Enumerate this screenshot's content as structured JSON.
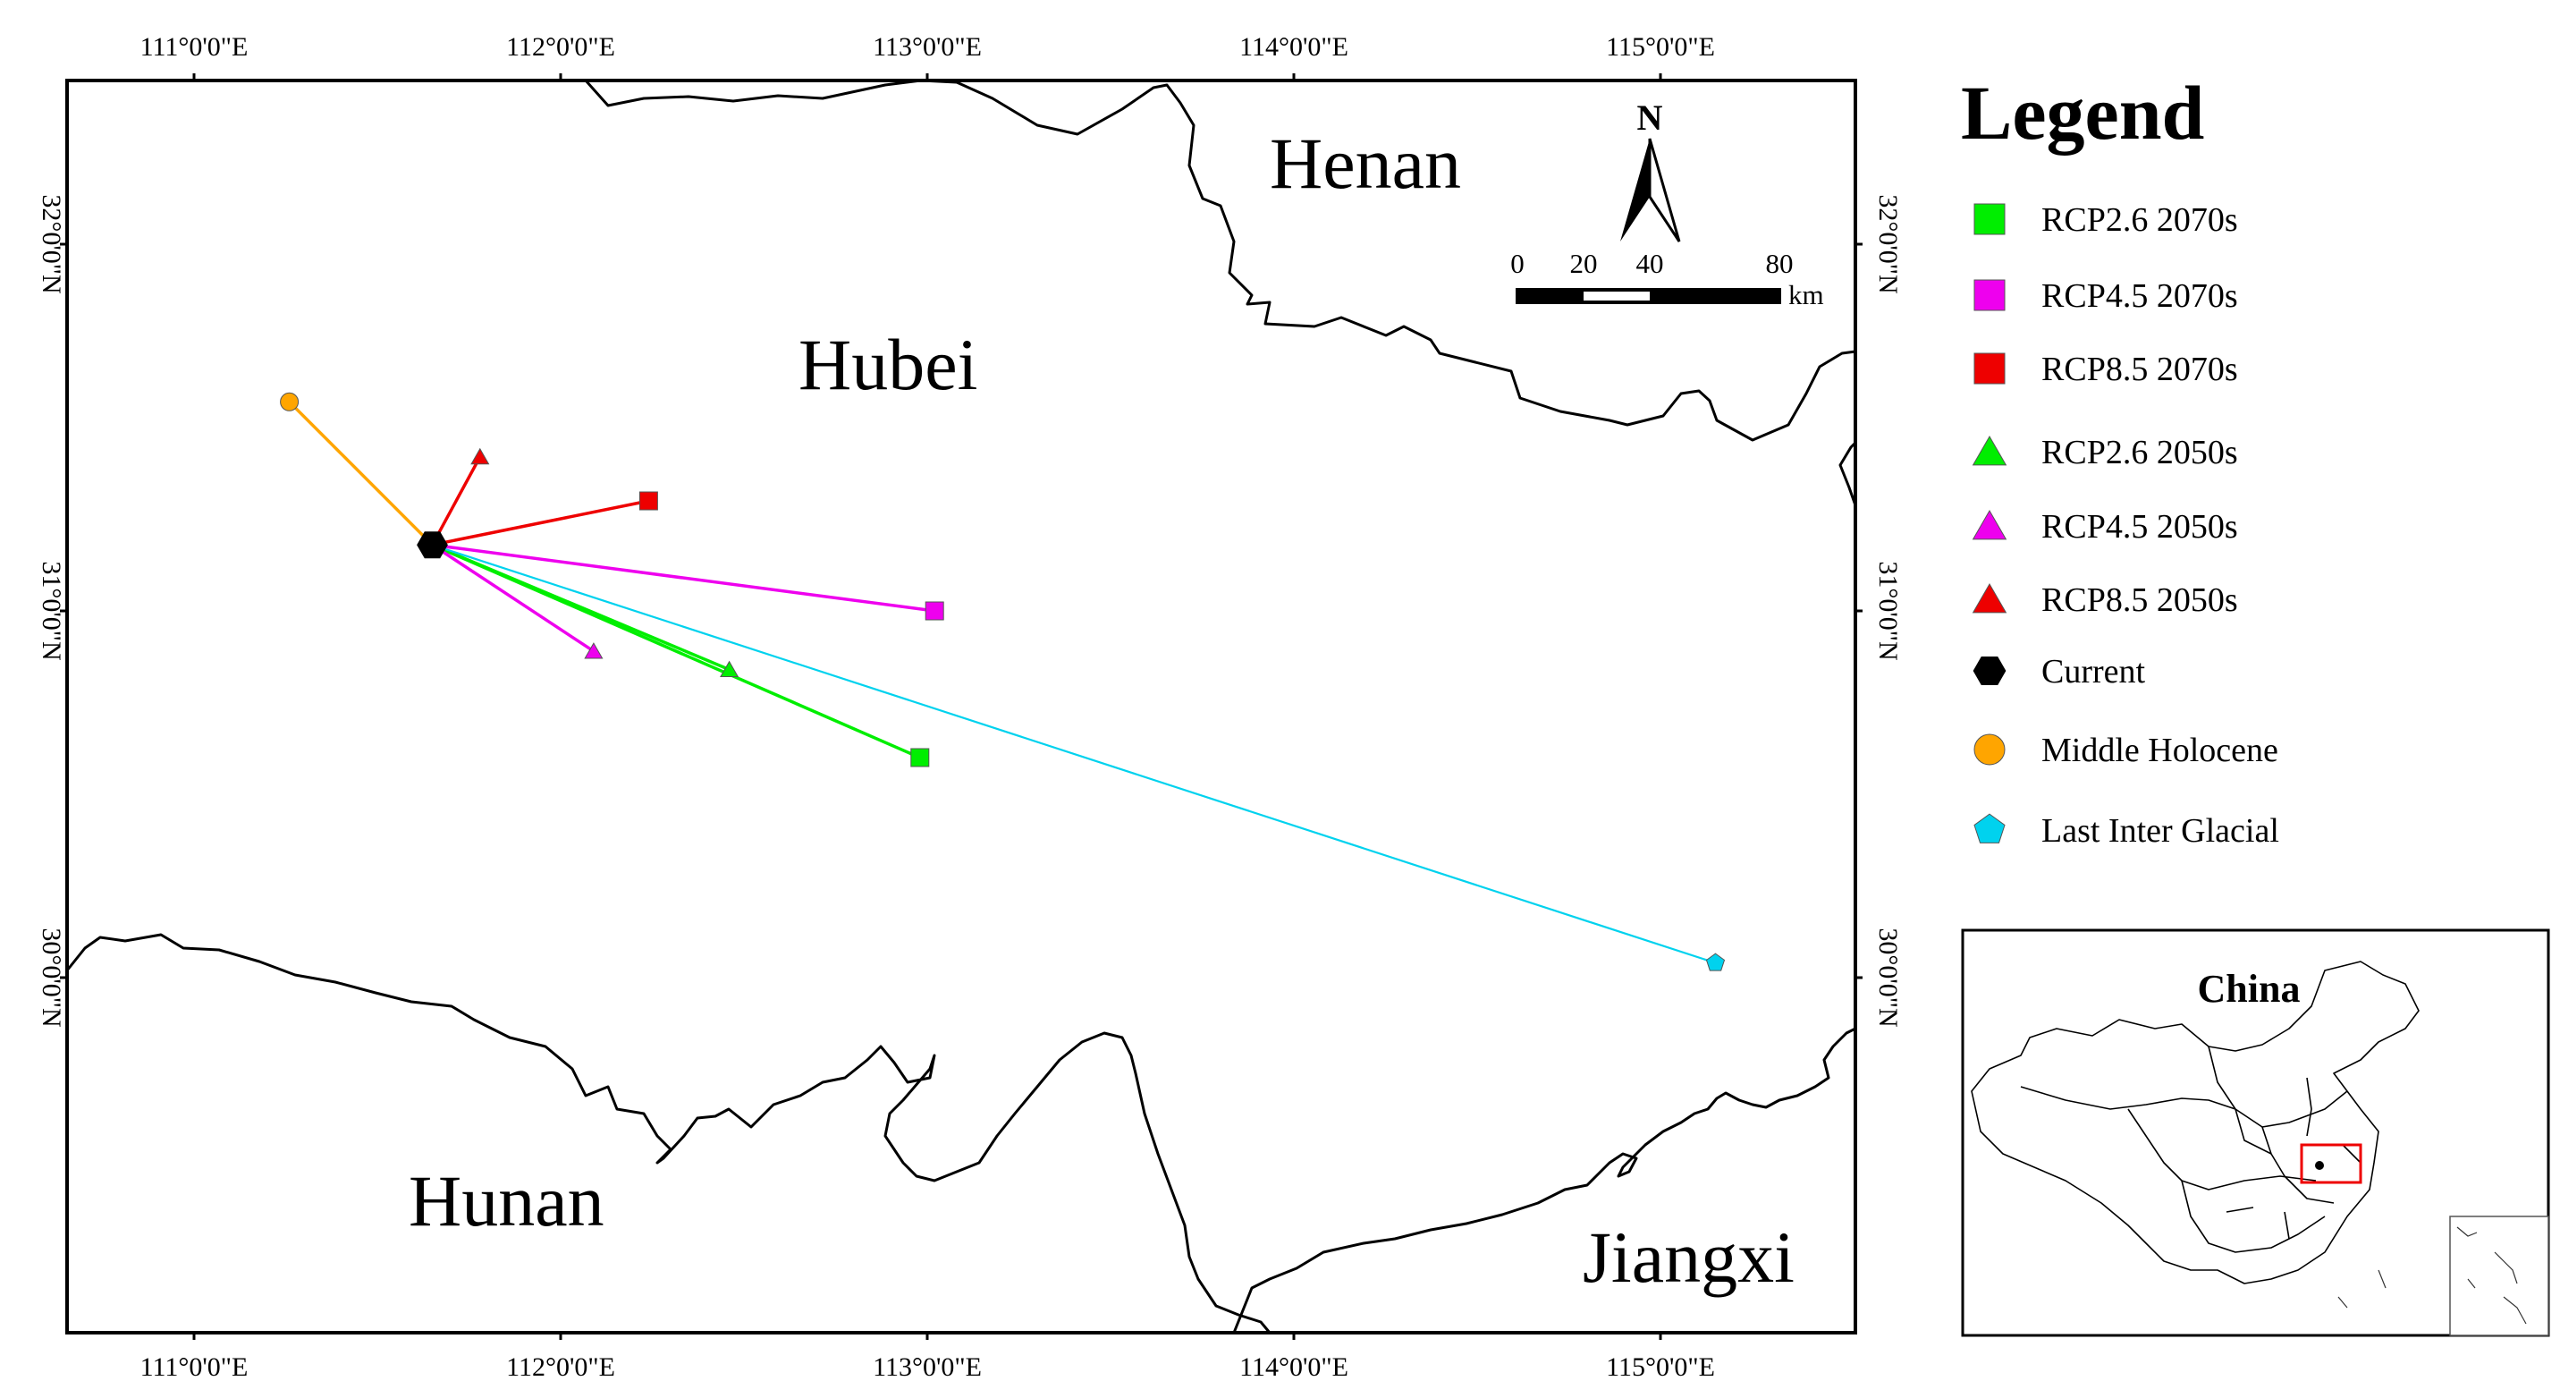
{
  "map": {
    "provinces": {
      "henan": "Henan",
      "hubei": "Hubei",
      "hunan": "Hunan",
      "jiangxi": "Jiangxi"
    },
    "lon_ticks": [
      "111°0'0\"E",
      "112°0'0\"E",
      "113°0'0\"E",
      "114°0'0\"E",
      "115°0'0\"E"
    ],
    "lat_ticks": [
      "32°0'0\"N",
      "31°0'0\"N",
      "30°0'0\"N"
    ],
    "north_label": "N",
    "scale": {
      "labels": [
        "0",
        "20",
        "40",
        "80"
      ],
      "unit": "km"
    },
    "centroids": [
      {
        "id": "current",
        "lon": 111.65,
        "lat": 31.18,
        "shape": "hexagon",
        "color": "#000000"
      },
      {
        "id": "rcp26_2070s",
        "lon": 112.98,
        "lat": 30.6,
        "shape": "square",
        "color": "#00ee00"
      },
      {
        "id": "rcp45_2070s",
        "lon": 113.02,
        "lat": 31.0,
        "shape": "square",
        "color": "#ee00ee"
      },
      {
        "id": "rcp85_2070s",
        "lon": 112.24,
        "lat": 31.3,
        "shape": "square",
        "color": "#ee0000"
      },
      {
        "id": "rcp26_2050s",
        "lon": 112.46,
        "lat": 30.84,
        "shape": "triangle",
        "color": "#00ee00"
      },
      {
        "id": "rcp45_2050s",
        "lon": 112.09,
        "lat": 30.89,
        "shape": "triangle",
        "color": "#ee00ee"
      },
      {
        "id": "rcp85_2050s",
        "lon": 111.78,
        "lat": 31.42,
        "shape": "triangle",
        "color": "#ee0000"
      },
      {
        "id": "middle_holocene",
        "lon": 111.26,
        "lat": 31.57,
        "shape": "circle",
        "color": "#ffa500"
      },
      {
        "id": "last_inter_glacial",
        "lon": 115.15,
        "lat": 30.04,
        "shape": "pentagon",
        "color": "#00d2ee"
      }
    ]
  },
  "legend": {
    "title": "Legend",
    "items": [
      {
        "label": "RCP2.6 2070s",
        "shape": "square",
        "color": "#00ee00"
      },
      {
        "label": "RCP4.5 2070s",
        "shape": "square",
        "color": "#ee00ee"
      },
      {
        "label": "RCP8.5 2070s",
        "shape": "square",
        "color": "#ee0000"
      },
      {
        "label": "RCP2.6 2050s",
        "shape": "triangle",
        "color": "#00ee00"
      },
      {
        "label": "RCP4.5 2050s",
        "shape": "triangle",
        "color": "#ee00ee"
      },
      {
        "label": "RCP8.5 2050s",
        "shape": "triangle",
        "color": "#ee0000"
      },
      {
        "label": "Current",
        "shape": "hexagon",
        "color": "#000000"
      },
      {
        "label": "Middle Holocene",
        "shape": "circle",
        "color": "#ffa500"
      },
      {
        "label": "Last Inter Glacial",
        "shape": "pentagon",
        "color": "#00d2ee"
      }
    ]
  },
  "inset": {
    "label": "China"
  }
}
